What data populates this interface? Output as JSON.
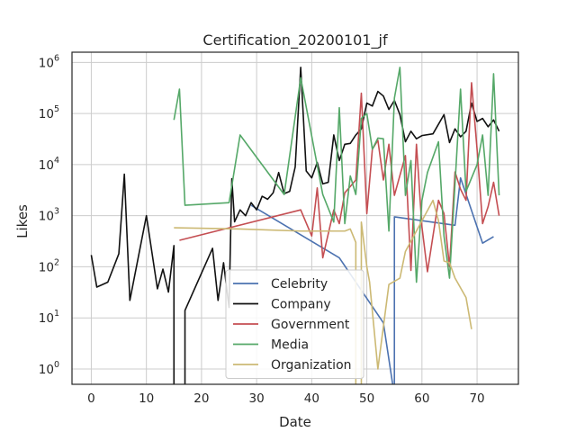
{
  "chart_data": {
    "type": "line",
    "title": "Certification_20200101_jf",
    "xlabel": "Date",
    "ylabel": "Likes",
    "xlim": [
      -3.5,
      77.5
    ],
    "ylim_log10": [
      -0.3,
      6.2
    ],
    "y_scale": "log",
    "x_ticks": [
      0,
      10,
      20,
      30,
      40,
      50,
      60,
      70
    ],
    "y_ticks": [
      {
        "exp": 0,
        "base": "10",
        "label": "0"
      },
      {
        "exp": 1,
        "base": "10",
        "label": "1"
      },
      {
        "exp": 2,
        "base": "10",
        "label": "2"
      },
      {
        "exp": 3,
        "base": "10",
        "label": "3"
      },
      {
        "exp": 4,
        "base": "10",
        "label": "4"
      },
      {
        "exp": 5,
        "base": "10",
        "label": "5"
      },
      {
        "exp": 6,
        "base": "10",
        "label": "6"
      }
    ],
    "grid": true,
    "legend_position": "lower-center",
    "series": [
      {
        "name": "Celebrity",
        "color": "#4c72b0",
        "points": [
          [
            29,
            1600
          ],
          [
            45,
            150
          ],
          [
            53,
            8
          ],
          [
            55,
            0.3
          ],
          [
            55,
            950
          ],
          [
            66,
            650
          ],
          [
            67,
            5500
          ],
          [
            71,
            290
          ],
          [
            73,
            390
          ]
        ]
      },
      {
        "name": "Company",
        "color": "#111111",
        "points": [
          [
            0,
            170
          ],
          [
            1,
            40
          ],
          [
            3,
            50
          ],
          [
            5,
            180
          ],
          [
            6,
            6500
          ],
          [
            7,
            22
          ],
          [
            10,
            1000
          ],
          [
            12,
            37
          ],
          [
            13,
            90
          ],
          [
            14,
            32
          ],
          [
            15,
            260
          ],
          [
            15,
            0.3
          ],
          [
            17,
            0.3
          ],
          [
            17,
            14
          ],
          [
            22,
            230
          ],
          [
            23,
            22
          ],
          [
            24,
            120
          ],
          [
            25,
            16
          ],
          [
            25.5,
            5300
          ],
          [
            26,
            760
          ],
          [
            27,
            1300
          ],
          [
            28,
            1000
          ],
          [
            29,
            1800
          ],
          [
            30,
            1300
          ],
          [
            31,
            2400
          ],
          [
            32,
            2100
          ],
          [
            33,
            2800
          ],
          [
            34,
            7000
          ],
          [
            35,
            2700
          ],
          [
            36,
            3000
          ],
          [
            37,
            9000
          ],
          [
            38,
            800000
          ],
          [
            39,
            7500
          ],
          [
            40,
            5500
          ],
          [
            41,
            11000
          ],
          [
            42,
            4200
          ],
          [
            43,
            4500
          ],
          [
            44,
            38000
          ],
          [
            45,
            12000
          ],
          [
            46,
            25000
          ],
          [
            47,
            26000
          ],
          [
            48,
            38000
          ],
          [
            49,
            50000
          ],
          [
            50,
            160000
          ],
          [
            51,
            140000
          ],
          [
            52,
            270000
          ],
          [
            53,
            220000
          ],
          [
            54,
            120000
          ],
          [
            55,
            180000
          ],
          [
            56,
            95000
          ],
          [
            57,
            28000
          ],
          [
            58,
            45000
          ],
          [
            59,
            32000
          ],
          [
            60,
            37000
          ],
          [
            62,
            40000
          ],
          [
            64,
            95000
          ],
          [
            65,
            27000
          ],
          [
            66,
            50000
          ],
          [
            67,
            35000
          ],
          [
            68,
            45000
          ],
          [
            69,
            160000
          ],
          [
            70,
            70000
          ],
          [
            71,
            80000
          ],
          [
            72,
            55000
          ],
          [
            73,
            75000
          ],
          [
            74,
            45000
          ]
        ]
      },
      {
        "name": "Government",
        "color": "#c44e52",
        "points": [
          [
            16,
            330
          ],
          [
            38,
            1300
          ],
          [
            40,
            400
          ],
          [
            41,
            3500
          ],
          [
            42,
            150
          ],
          [
            44,
            1300
          ],
          [
            45,
            700
          ],
          [
            46,
            2800
          ],
          [
            48,
            5000
          ],
          [
            49,
            250000
          ],
          [
            50,
            1100
          ],
          [
            51,
            20000
          ],
          [
            52,
            30000
          ],
          [
            53,
            5000
          ],
          [
            54,
            25000
          ],
          [
            55,
            2500
          ],
          [
            57,
            15000
          ],
          [
            58,
            85
          ],
          [
            59,
            25000
          ],
          [
            60,
            600
          ],
          [
            61,
            80
          ],
          [
            63,
            2000
          ],
          [
            64,
            1100
          ],
          [
            65,
            100
          ],
          [
            66,
            7200
          ],
          [
            67,
            3300
          ],
          [
            68,
            2000
          ],
          [
            69,
            400000
          ],
          [
            70,
            20000
          ],
          [
            71,
            700
          ],
          [
            72,
            1500
          ],
          [
            73,
            4500
          ],
          [
            74,
            1000
          ]
        ]
      },
      {
        "name": "Media",
        "color": "#55a868",
        "points": [
          [
            15,
            75000
          ],
          [
            16,
            300000
          ],
          [
            17,
            1600
          ],
          [
            25,
            1800
          ],
          [
            27,
            38000
          ],
          [
            35,
            2600
          ],
          [
            38,
            500000
          ],
          [
            42,
            2600
          ],
          [
            44,
            750
          ],
          [
            45,
            130000
          ],
          [
            46,
            700
          ],
          [
            47,
            6000
          ],
          [
            48,
            2600
          ],
          [
            49,
            80000
          ],
          [
            50,
            100000
          ],
          [
            51,
            20000
          ],
          [
            52,
            33000
          ],
          [
            53,
            32000
          ],
          [
            54,
            500
          ],
          [
            55,
            200000
          ],
          [
            56,
            800000
          ],
          [
            57,
            2500
          ],
          [
            58,
            12000
          ],
          [
            59,
            50
          ],
          [
            60,
            2000
          ],
          [
            61,
            7000
          ],
          [
            63,
            28000
          ],
          [
            64,
            400
          ],
          [
            65,
            60
          ],
          [
            67,
            300000
          ],
          [
            68,
            3000
          ],
          [
            70,
            10000
          ],
          [
            71,
            38000
          ],
          [
            72,
            2500
          ],
          [
            73,
            600000
          ],
          [
            74,
            2500
          ]
        ]
      },
      {
        "name": "Organization",
        "color": "#ccb974",
        "points": [
          [
            15,
            580
          ],
          [
            27,
            550
          ],
          [
            38,
            500
          ],
          [
            46,
            500
          ],
          [
            47,
            550
          ],
          [
            48,
            300
          ],
          [
            48,
            0.3
          ],
          [
            49,
            0.3
          ],
          [
            49,
            750
          ],
          [
            50,
            100
          ],
          [
            50.5,
            50
          ],
          [
            52,
            1
          ],
          [
            54,
            45
          ],
          [
            56,
            60
          ],
          [
            57,
            200
          ],
          [
            62,
            2000
          ],
          [
            63,
            800
          ],
          [
            64,
            130
          ],
          [
            65,
            120
          ],
          [
            66,
            60
          ],
          [
            68,
            25
          ],
          [
            69,
            6
          ]
        ]
      }
    ]
  }
}
